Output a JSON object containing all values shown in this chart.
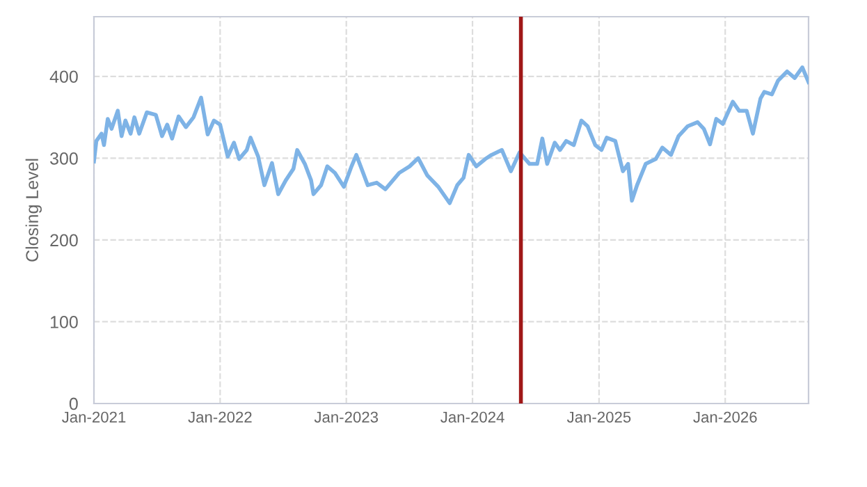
{
  "chart_data": {
    "type": "line",
    "ylabel": "Closing Level",
    "xlim": [
      "2021-01-01",
      "2026-08-30"
    ],
    "ylim": [
      0,
      473
    ],
    "xticks": [
      {
        "value": "2021-01-01",
        "label": "Jan-2021"
      },
      {
        "value": "2022-01-01",
        "label": "Jan-2022"
      },
      {
        "value": "2023-01-01",
        "label": "Jan-2023"
      },
      {
        "value": "2024-01-01",
        "label": "Jan-2024"
      },
      {
        "value": "2025-01-01",
        "label": "Jan-2025"
      },
      {
        "value": "2026-01-01",
        "label": "Jan-2026"
      }
    ],
    "yticks": [
      0,
      100,
      200,
      300,
      400
    ],
    "grid": true,
    "line_style": "solid",
    "marker": "none",
    "ref_lines": [
      {
        "axis": "x",
        "value": "2024-05-20",
        "color": "#a01818"
      }
    ],
    "series": [
      {
        "color": "#7eb3e6",
        "x": [
          "2021-01-01",
          "2021-01-08",
          "2021-01-23",
          "2021-01-30",
          "2021-02-10",
          "2021-02-21",
          "2021-03-11",
          "2021-03-22",
          "2021-04-02",
          "2021-04-17",
          "2021-04-28",
          "2021-05-12",
          "2021-06-03",
          "2021-06-29",
          "2021-07-17",
          "2021-08-01",
          "2021-08-15",
          "2021-09-03",
          "2021-09-24",
          "2021-10-16",
          "2021-11-07",
          "2021-11-26",
          "2021-12-14",
          "2022-01-01",
          "2022-01-23",
          "2022-02-10",
          "2022-02-25",
          "2022-03-19",
          "2022-03-30",
          "2022-04-21",
          "2022-05-09",
          "2022-05-31",
          "2022-06-18",
          "2022-07-10",
          "2022-08-01",
          "2022-08-12",
          "2022-09-03",
          "2022-09-21",
          "2022-09-28",
          "2022-10-20",
          "2022-11-07",
          "2022-11-29",
          "2022-12-25",
          "2023-01-16",
          "2023-01-30",
          "2023-03-04",
          "2023-03-30",
          "2023-04-24",
          "2023-06-03",
          "2023-07-03",
          "2023-07-28",
          "2023-08-23",
          "2023-09-24",
          "2023-10-27",
          "2023-11-18",
          "2023-12-06",
          "2023-12-21",
          "2024-01-12",
          "2024-02-07",
          "2024-02-25",
          "2024-03-26",
          "2024-04-21",
          "2024-05-16",
          "2024-06-14",
          "2024-07-06",
          "2024-07-21",
          "2024-08-04",
          "2024-08-26",
          "2024-09-10",
          "2024-09-28",
          "2024-10-20",
          "2024-11-11",
          "2024-11-29",
          "2024-12-21",
          "2025-01-08",
          "2025-01-23",
          "2025-02-17",
          "2025-03-11",
          "2025-03-26",
          "2025-04-06",
          "2025-04-21",
          "2025-05-16",
          "2025-06-14",
          "2025-07-03",
          "2025-07-28",
          "2025-08-19",
          "2025-09-14",
          "2025-10-13",
          "2025-10-31",
          "2025-11-18",
          "2025-12-06",
          "2025-12-25",
          "2026-01-23",
          "2026-02-10",
          "2026-03-04",
          "2026-03-22",
          "2026-04-13",
          "2026-04-24",
          "2026-05-16",
          "2026-06-03",
          "2026-06-29",
          "2026-07-21",
          "2026-08-12",
          "2026-08-30"
        ],
        "values": [
          296,
          321,
          330,
          316,
          348,
          336,
          358,
          327,
          346,
          330,
          350,
          330,
          356,
          353,
          327,
          341,
          324,
          351,
          338,
          350,
          374,
          329,
          346,
          341,
          302,
          319,
          299,
          310,
          325,
          302,
          267,
          294,
          256,
          273,
          287,
          310,
          293,
          273,
          256,
          267,
          290,
          282,
          265,
          290,
          304,
          267,
          270,
          262,
          282,
          290,
          300,
          279,
          265,
          245,
          267,
          276,
          304,
          290,
          299,
          304,
          310,
          284,
          307,
          293,
          293,
          324,
          293,
          319,
          310,
          321,
          316,
          346,
          339,
          316,
          310,
          325,
          321,
          284,
          293,
          248,
          267,
          293,
          299,
          313,
          304,
          327,
          339,
          344,
          336,
          317,
          348,
          342,
          369,
          358,
          358,
          330,
          373,
          381,
          378,
          395,
          406,
          398,
          411,
          393
        ]
      }
    ]
  }
}
